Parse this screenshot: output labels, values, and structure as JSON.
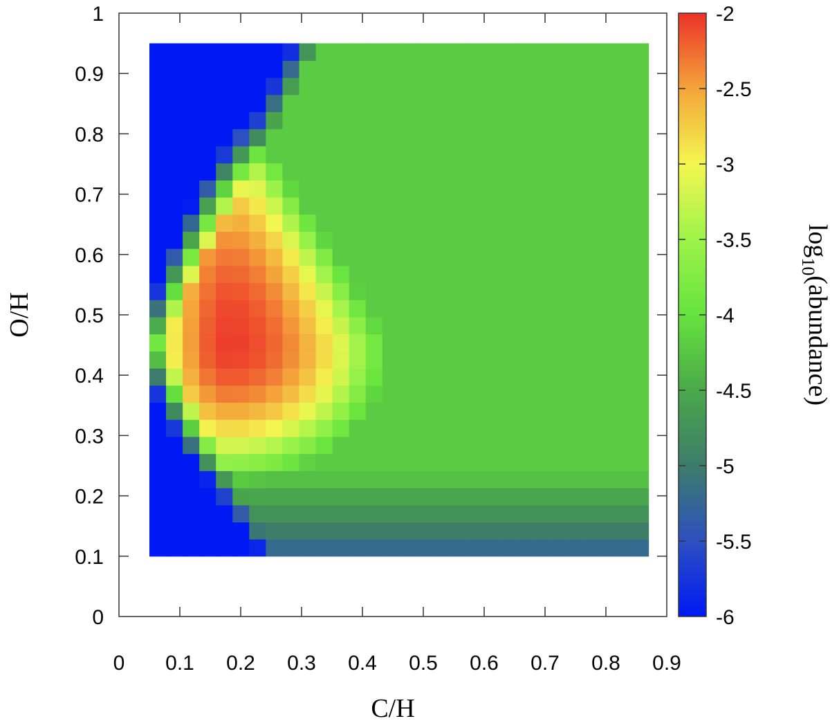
{
  "chart_data": {
    "type": "heatmap",
    "xlabel": "C/H",
    "ylabel": "O/H",
    "xlim": [
      0,
      0.9
    ],
    "ylim": [
      0,
      1
    ],
    "x_ticks": [
      "0",
      "0.1",
      "0.2",
      "0.3",
      "0.4",
      "0.5",
      "0.6",
      "0.7",
      "0.8",
      "0.9"
    ],
    "y_ticks": [
      "0",
      "0.1",
      "0.2",
      "0.3",
      "0.4",
      "0.5",
      "0.6",
      "0.7",
      "0.8",
      "0.9",
      "1"
    ],
    "grid": {
      "x_start": 0.05,
      "x_end": 0.87,
      "x_step": 0.0273,
      "y_start": 0.1,
      "y_end": 0.95,
      "y_step": 0.0283
    },
    "peak": {
      "x": 0.18,
      "y": 0.45,
      "value": -2.05
    },
    "colorbar": {
      "label_base": "log",
      "label_sub": "10",
      "label_rest": "(abundance)",
      "range": [
        -6,
        -2
      ],
      "ticks": [
        "-2",
        "-2.5",
        "-3",
        "-3.5",
        "-4",
        "-4.5",
        "-5",
        "-5.5",
        "-6"
      ],
      "stops": [
        {
          "v": -6.0,
          "c": "#0019f5"
        },
        {
          "v": -5.5,
          "c": "#2d50c0"
        },
        {
          "v": -5.0,
          "c": "#3d7c6a"
        },
        {
          "v": -4.5,
          "c": "#4aa84a"
        },
        {
          "v": -4.0,
          "c": "#66e33e"
        },
        {
          "v": -3.5,
          "c": "#9df34a"
        },
        {
          "v": -3.0,
          "c": "#f4f650"
        },
        {
          "v": -2.5,
          "c": "#f4a43a"
        },
        {
          "v": -2.0,
          "c": "#ec3229"
        }
      ]
    }
  }
}
